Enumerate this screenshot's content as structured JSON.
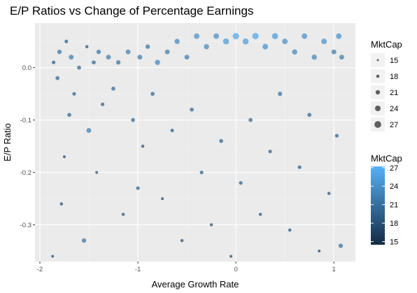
{
  "chart_data": {
    "type": "scatter",
    "title": "E/P Ratios vs Change of Percentage Earnings",
    "xlabel": "Average Growth Rate",
    "ylabel": "E/P Ratio",
    "xlim": [
      -2.05,
      1.22
    ],
    "ylim": [
      -0.37,
      0.085
    ],
    "x_ticks": [
      -2,
      -1,
      0,
      1
    ],
    "x_tick_labels": [
      "-2",
      "-1",
      "0",
      "1"
    ],
    "y_ticks": [
      0.0,
      -0.1,
      -0.2,
      -0.3
    ],
    "y_tick_labels": [
      "0.0",
      "-0.1",
      "-0.2",
      "-0.3"
    ],
    "grid": true,
    "color_low": "#132B43",
    "color_high": "#56B1F7",
    "panel_background": "#ebebeb",
    "size_legend": {
      "title": "MktCap",
      "values": [
        15,
        18,
        21,
        24,
        27
      ],
      "labels": [
        "15",
        "18",
        "21",
        "24",
        "27"
      ]
    },
    "color_legend": {
      "title": "MktCap",
      "values": [
        15,
        18,
        21,
        24,
        27
      ],
      "labels": [
        "15",
        "18",
        "21",
        "24",
        "27"
      ],
      "min": 14.5,
      "max": 27.2
    },
    "points": [
      [
        -1.87,
        -0.36,
        17
      ],
      [
        -1.86,
        0.01,
        19
      ],
      [
        -1.82,
        -0.02,
        20
      ],
      [
        -1.8,
        0.03,
        21
      ],
      [
        -1.78,
        -0.26,
        18
      ],
      [
        -1.75,
        -0.17,
        17
      ],
      [
        -1.73,
        0.05,
        19
      ],
      [
        -1.7,
        -0.09,
        20
      ],
      [
        -1.68,
        0.02,
        22
      ],
      [
        -1.65,
        -0.05,
        19
      ],
      [
        -1.6,
        0.0,
        20
      ],
      [
        -1.55,
        -0.33,
        21
      ],
      [
        -1.52,
        0.04,
        18
      ],
      [
        -1.5,
        -0.12,
        22
      ],
      [
        -1.45,
        0.01,
        20
      ],
      [
        -1.42,
        -0.2,
        17
      ],
      [
        -1.4,
        0.03,
        21
      ],
      [
        -1.36,
        -0.07,
        19
      ],
      [
        -1.3,
        0.02,
        22
      ],
      [
        -1.25,
        -0.04,
        20
      ],
      [
        -1.2,
        0.01,
        21
      ],
      [
        -1.15,
        -0.28,
        18
      ],
      [
        -1.1,
        0.03,
        22
      ],
      [
        -1.05,
        -0.1,
        20
      ],
      [
        -1.0,
        -0.23,
        19
      ],
      [
        -0.98,
        0.02,
        22
      ],
      [
        -0.95,
        -0.15,
        18
      ],
      [
        -0.9,
        0.04,
        21
      ],
      [
        -0.85,
        -0.05,
        20
      ],
      [
        -0.8,
        0.01,
        23
      ],
      [
        -0.75,
        -0.25,
        17
      ],
      [
        -0.7,
        0.03,
        22
      ],
      [
        -0.65,
        -0.12,
        19
      ],
      [
        -0.6,
        0.05,
        23
      ],
      [
        -0.55,
        -0.33,
        18
      ],
      [
        -0.5,
        0.02,
        22
      ],
      [
        -0.45,
        -0.08,
        20
      ],
      [
        -0.4,
        0.06,
        24
      ],
      [
        -0.35,
        -0.2,
        19
      ],
      [
        -0.3,
        0.04,
        23
      ],
      [
        -0.25,
        -0.3,
        18
      ],
      [
        -0.2,
        0.06,
        24
      ],
      [
        -0.15,
        -0.14,
        20
      ],
      [
        -0.1,
        0.05,
        25
      ],
      [
        -0.05,
        -0.36,
        17
      ],
      [
        0.0,
        0.06,
        26
      ],
      [
        0.05,
        -0.22,
        19
      ],
      [
        0.1,
        0.05,
        25
      ],
      [
        0.15,
        -0.1,
        20
      ],
      [
        0.2,
        0.06,
        26
      ],
      [
        0.25,
        -0.28,
        18
      ],
      [
        0.3,
        0.04,
        24
      ],
      [
        0.35,
        -0.16,
        19
      ],
      [
        0.4,
        0.06,
        25
      ],
      [
        0.45,
        -0.05,
        21
      ],
      [
        0.5,
        0.05,
        24
      ],
      [
        0.55,
        -0.31,
        18
      ],
      [
        0.6,
        0.03,
        23
      ],
      [
        0.65,
        -0.19,
        19
      ],
      [
        0.7,
        0.06,
        24
      ],
      [
        0.75,
        -0.09,
        20
      ],
      [
        0.8,
        0.02,
        23
      ],
      [
        0.85,
        -0.35,
        17
      ],
      [
        0.9,
        0.05,
        24
      ],
      [
        0.95,
        -0.24,
        18
      ],
      [
        1.0,
        0.03,
        22
      ],
      [
        1.03,
        -0.13,
        19
      ],
      [
        1.05,
        0.06,
        24
      ],
      [
        1.07,
        -0.34,
        21
      ],
      [
        1.08,
        0.02,
        22
      ]
    ]
  }
}
